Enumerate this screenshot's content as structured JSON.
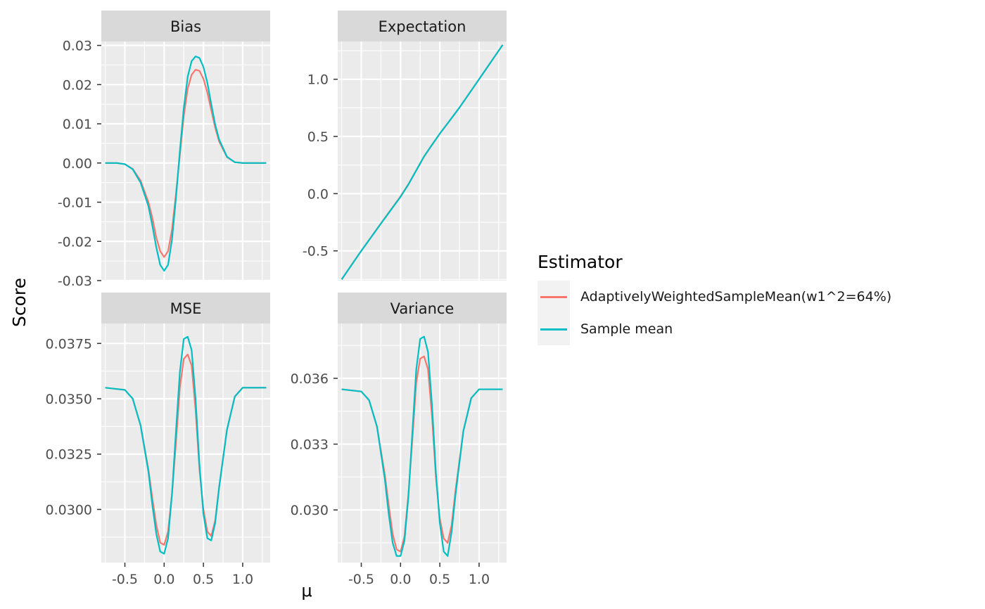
{
  "colors": {
    "adaptive": "#F8766D",
    "sample": "#00BFC4",
    "panel_bg": "#EBEBEB",
    "strip_bg": "#D9D9D9"
  },
  "axis": {
    "ylabel": "Score",
    "xlabel": "μ"
  },
  "legend": {
    "title": "Estimator",
    "entries": [
      {
        "label": "AdaptivelyWeightedSampleMean(w1^2=64%)",
        "color": "#F8766D"
      },
      {
        "label": "Sample mean",
        "color": "#00BFC4"
      }
    ]
  },
  "chart_data": [
    {
      "type": "line",
      "title": "Bias",
      "xlim": [
        -0.8,
        1.35
      ],
      "ylim": [
        -0.03,
        0.031
      ],
      "x_ticks": [
        -0.5,
        0.0,
        0.5,
        1.0
      ],
      "x_tick_labels": [
        "-0.5",
        "0.0",
        "0.5",
        "1.0"
      ],
      "y_ticks": [
        -0.03,
        -0.02,
        -0.01,
        0.0,
        0.01,
        0.02,
        0.03
      ],
      "y_tick_labels": [
        "-0.03",
        "-0.02",
        "-0.01",
        "0.00",
        "0.01",
        "0.02",
        "0.03"
      ],
      "series": [
        {
          "name": "AdaptivelyWeightedSampleMean(w1^2=64%)",
          "color": "#F8766D",
          "x": [
            -0.75,
            -0.6,
            -0.5,
            -0.4,
            -0.3,
            -0.2,
            -0.15,
            -0.1,
            -0.05,
            0.0,
            0.05,
            0.1,
            0.15,
            0.2,
            0.25,
            0.3,
            0.35,
            0.4,
            0.45,
            0.5,
            0.55,
            0.6,
            0.65,
            0.7,
            0.8,
            0.9,
            1.0,
            1.1,
            1.2,
            1.3
          ],
          "y": [
            0.0,
            0.0,
            -0.0003,
            -0.0015,
            -0.0045,
            -0.01,
            -0.014,
            -0.019,
            -0.0225,
            -0.024,
            -0.0225,
            -0.017,
            -0.008,
            0.002,
            0.012,
            0.019,
            0.0225,
            0.0238,
            0.0235,
            0.0215,
            0.018,
            0.0135,
            0.009,
            0.0055,
            0.0015,
            0.0002,
            0.0,
            0.0,
            0.0,
            0.0
          ]
        },
        {
          "name": "Sample mean",
          "color": "#00BFC4",
          "x": [
            -0.75,
            -0.6,
            -0.5,
            -0.4,
            -0.3,
            -0.2,
            -0.15,
            -0.1,
            -0.05,
            0.0,
            0.05,
            0.1,
            0.15,
            0.2,
            0.25,
            0.3,
            0.35,
            0.4,
            0.45,
            0.5,
            0.55,
            0.6,
            0.65,
            0.7,
            0.8,
            0.9,
            1.0,
            1.1,
            1.2,
            1.3
          ],
          "y": [
            0.0,
            0.0,
            -0.0003,
            -0.0016,
            -0.005,
            -0.011,
            -0.016,
            -0.0215,
            -0.026,
            -0.0275,
            -0.026,
            -0.0195,
            -0.009,
            0.003,
            0.014,
            0.022,
            0.026,
            0.0272,
            0.0268,
            0.0245,
            0.0205,
            0.015,
            0.0098,
            0.006,
            0.0016,
            0.0002,
            0.0,
            0.0,
            0.0,
            0.0
          ]
        }
      ]
    },
    {
      "type": "line",
      "title": "Expectation",
      "xlim": [
        -0.8,
        1.35
      ],
      "ylim": [
        -0.76,
        1.33
      ],
      "x_ticks": [
        -0.5,
        0.0,
        0.5,
        1.0
      ],
      "x_tick_labels": [
        "-0.5",
        "0.0",
        "0.5",
        "1.0"
      ],
      "y_ticks": [
        -0.5,
        0.0,
        0.5,
        1.0
      ],
      "y_tick_labels": [
        "-0.5",
        "0.0",
        "0.5",
        "1.0"
      ],
      "series": [
        {
          "name": "AdaptivelyWeightedSampleMean(w1^2=64%)",
          "color": "#F8766D",
          "x": [
            -0.75,
            -0.5,
            -0.25,
            0.0,
            0.1,
            0.2,
            0.3,
            0.4,
            0.5,
            0.6,
            0.75,
            1.0,
            1.3
          ],
          "y": [
            -0.75,
            -0.5,
            -0.26,
            -0.024,
            0.083,
            0.203,
            0.324,
            0.424,
            0.524,
            0.614,
            0.752,
            1.0,
            1.3
          ]
        },
        {
          "name": "Sample mean",
          "color": "#00BFC4",
          "x": [
            -0.75,
            -0.5,
            -0.25,
            0.0,
            0.1,
            0.2,
            0.3,
            0.4,
            0.5,
            0.6,
            0.75,
            1.0,
            1.3
          ],
          "y": [
            -0.75,
            -0.5,
            -0.262,
            -0.0275,
            0.08,
            0.203,
            0.326,
            0.427,
            0.525,
            0.615,
            0.752,
            1.0,
            1.3
          ]
        }
      ]
    },
    {
      "type": "line",
      "title": "MSE",
      "xlim": [
        -0.8,
        1.35
      ],
      "ylim": [
        0.0276,
        0.0384
      ],
      "x_ticks": [
        -0.5,
        0.0,
        0.5,
        1.0
      ],
      "x_tick_labels": [
        "-0.5",
        "0.0",
        "0.5",
        "1.0"
      ],
      "y_ticks": [
        0.03,
        0.0325,
        0.035,
        0.0375
      ],
      "y_tick_labels": [
        "0.0300",
        "0.0325",
        "0.0350",
        "0.0375"
      ],
      "series": [
        {
          "name": "AdaptivelyWeightedSampleMean(w1^2=64%)",
          "color": "#F8766D",
          "x": [
            -0.75,
            -0.5,
            -0.4,
            -0.3,
            -0.2,
            -0.15,
            -0.1,
            -0.05,
            0.0,
            0.05,
            0.1,
            0.15,
            0.2,
            0.25,
            0.3,
            0.35,
            0.4,
            0.45,
            0.5,
            0.55,
            0.6,
            0.65,
            0.7,
            0.8,
            0.9,
            1.0,
            1.1,
            1.3
          ],
          "y": [
            0.0355,
            0.0354,
            0.035,
            0.0338,
            0.0318,
            0.0305,
            0.0293,
            0.0285,
            0.0284,
            0.029,
            0.0307,
            0.033,
            0.0355,
            0.0368,
            0.037,
            0.0365,
            0.0345,
            0.0318,
            0.03,
            0.029,
            0.0288,
            0.0295,
            0.031,
            0.0336,
            0.0351,
            0.0355,
            0.0355,
            0.0355
          ]
        },
        {
          "name": "Sample mean",
          "color": "#00BFC4",
          "x": [
            -0.75,
            -0.5,
            -0.4,
            -0.3,
            -0.2,
            -0.15,
            -0.1,
            -0.05,
            0.0,
            0.05,
            0.1,
            0.15,
            0.2,
            0.25,
            0.3,
            0.35,
            0.4,
            0.45,
            0.5,
            0.55,
            0.6,
            0.65,
            0.7,
            0.8,
            0.9,
            1.0,
            1.1,
            1.3
          ],
          "y": [
            0.0355,
            0.0354,
            0.035,
            0.0338,
            0.0317,
            0.0302,
            0.0289,
            0.0281,
            0.028,
            0.0287,
            0.0307,
            0.0335,
            0.0362,
            0.0377,
            0.0378,
            0.0372,
            0.035,
            0.032,
            0.0298,
            0.0287,
            0.0286,
            0.0294,
            0.031,
            0.0336,
            0.0351,
            0.0355,
            0.0355,
            0.0355
          ]
        }
      ]
    },
    {
      "type": "line",
      "title": "Variance",
      "xlim": [
        -0.8,
        1.35
      ],
      "ylim": [
        0.0276,
        0.0385
      ],
      "x_ticks": [
        -0.5,
        0.0,
        0.5,
        1.0
      ],
      "x_tick_labels": [
        "-0.5",
        "0.0",
        "0.5",
        "1.0"
      ],
      "y_ticks": [
        0.03,
        0.033,
        0.036
      ],
      "y_tick_labels": [
        "0.030",
        "0.033",
        "0.036"
      ],
      "series": [
        {
          "name": "AdaptivelyWeightedSampleMean(w1^2=64%)",
          "color": "#F8766D",
          "x": [
            -0.75,
            -0.5,
            -0.4,
            -0.3,
            -0.2,
            -0.15,
            -0.1,
            -0.05,
            0.0,
            0.05,
            0.1,
            0.15,
            0.2,
            0.25,
            0.3,
            0.35,
            0.4,
            0.45,
            0.5,
            0.55,
            0.6,
            0.65,
            0.7,
            0.8,
            0.9,
            1.0,
            1.1,
            1.3
          ],
          "y": [
            0.0355,
            0.0354,
            0.035,
            0.0338,
            0.0316,
            0.0302,
            0.0289,
            0.0282,
            0.0281,
            0.0288,
            0.0307,
            0.0332,
            0.0358,
            0.0369,
            0.037,
            0.0364,
            0.0343,
            0.0315,
            0.0296,
            0.0287,
            0.0285,
            0.0293,
            0.0309,
            0.0336,
            0.0351,
            0.0355,
            0.0355,
            0.0355
          ]
        },
        {
          "name": "Sample mean",
          "color": "#00BFC4",
          "x": [
            -0.75,
            -0.5,
            -0.4,
            -0.3,
            -0.2,
            -0.15,
            -0.1,
            -0.05,
            0.0,
            0.05,
            0.1,
            0.15,
            0.2,
            0.25,
            0.3,
            0.35,
            0.4,
            0.45,
            0.5,
            0.55,
            0.6,
            0.65,
            0.7,
            0.8,
            0.9,
            1.0,
            1.1,
            1.3
          ],
          "y": [
            0.0355,
            0.0354,
            0.035,
            0.0338,
            0.0314,
            0.0298,
            0.0285,
            0.0279,
            0.0279,
            0.0286,
            0.0306,
            0.0335,
            0.0364,
            0.0378,
            0.0379,
            0.0372,
            0.0348,
            0.0317,
            0.0294,
            0.0281,
            0.0279,
            0.029,
            0.0307,
            0.0336,
            0.0351,
            0.0355,
            0.0355,
            0.0355
          ]
        }
      ]
    }
  ]
}
